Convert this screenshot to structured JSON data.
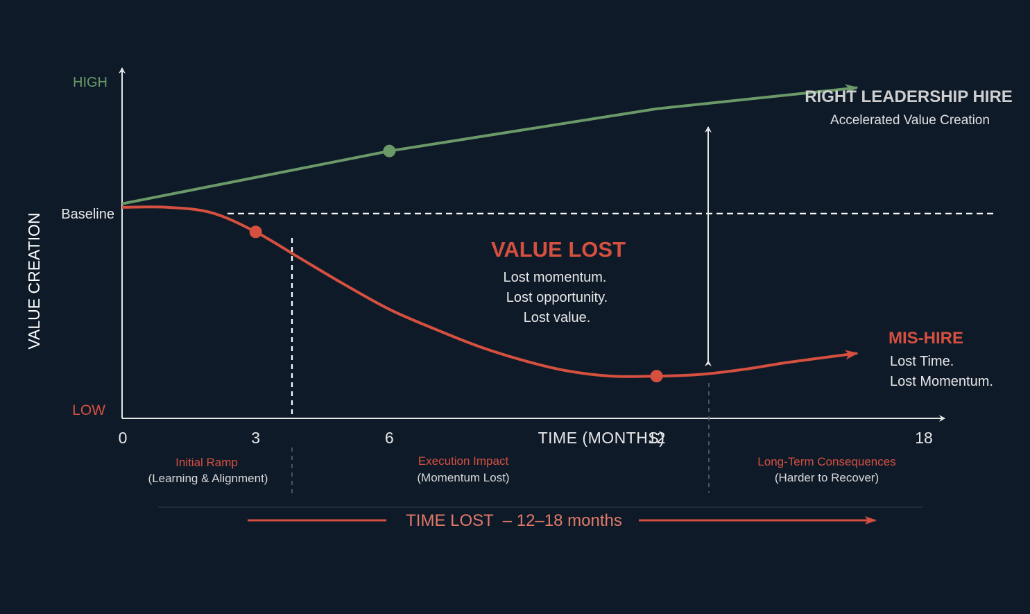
{
  "colors": {
    "background": "#0f1a29",
    "axis": "#e6e6e6",
    "green": "#6b9a68",
    "red": "#d5503f",
    "text": "#e8e8e8",
    "muted": "#cfcfcf"
  },
  "chart_data": {
    "type": "line",
    "ylabel": "VALUE CREATION",
    "xlabel": "TIME (MONTHS)",
    "xlim": [
      0,
      18
    ],
    "ylim": [
      0,
      10
    ],
    "x_ticks": [
      "0",
      "3",
      "6",
      "12",
      "18"
    ],
    "y_labels": {
      "high": "HIGH",
      "baseline": "Baseline",
      "low": "LOW"
    },
    "baseline_value": 6,
    "series": [
      {
        "name": "RIGHT LEADERSHIP HIRE",
        "subtitle": "Accelerated Value Creation",
        "color": "#6b9a68",
        "points": [
          [
            0,
            6.1
          ],
          [
            6,
            7.6
          ],
          [
            12,
            8.8
          ],
          [
            16.5,
            9.4
          ]
        ],
        "markers": [
          [
            6,
            7.6
          ]
        ]
      },
      {
        "name": "MIS-HIRE",
        "subtitle_lines": [
          "Lost Time.",
          "Lost Momentum."
        ],
        "color": "#d5503f",
        "points": [
          [
            0,
            6.0
          ],
          [
            1,
            6.0
          ],
          [
            2,
            5.85
          ],
          [
            3,
            5.3
          ],
          [
            4,
            4.55
          ],
          [
            5,
            3.8
          ],
          [
            6,
            3.1
          ],
          [
            7,
            2.55
          ],
          [
            8,
            2.05
          ],
          [
            9,
            1.65
          ],
          [
            10,
            1.35
          ],
          [
            11,
            1.2
          ],
          [
            12,
            1.2
          ],
          [
            13,
            1.25
          ],
          [
            14,
            1.4
          ],
          [
            15,
            1.6
          ],
          [
            16.5,
            1.85
          ]
        ],
        "markers": [
          [
            3,
            5.3
          ],
          [
            12,
            1.2
          ]
        ]
      }
    ],
    "annotations": {
      "value_lost": {
        "title": "VALUE LOST",
        "lines": [
          "Lost momentum.",
          "Lost opportunity.",
          "Lost value."
        ]
      },
      "phases": [
        {
          "title": "Initial Ramp",
          "subtitle": "(Learning & Alignment)"
        },
        {
          "title": "Execution Impact",
          "subtitle": "(Momentum Lost)"
        },
        {
          "title": "Long-Term Consequences",
          "subtitle": "(Harder to Recover)"
        }
      ],
      "time_lost": "TIME LOST  – 12–18 months"
    }
  }
}
